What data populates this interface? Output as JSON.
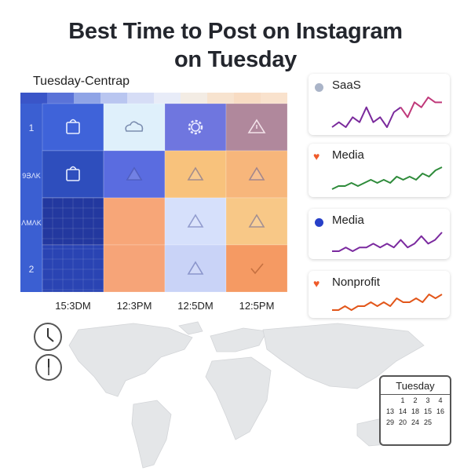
{
  "title": {
    "line1": "Best Time to Post on Instagram",
    "line2": "on Tuesday"
  },
  "chart_data": [
    {
      "type": "heatmap",
      "title": "Tuesday-Centrap",
      "x_labels": [
        "15:3DM",
        "12:3PM",
        "12:5DM",
        "12:5PM"
      ],
      "y_labels": [
        "1",
        "9ՅɅK",
        "ɅMɅK",
        "2"
      ],
      "cells": [
        [
          {
            "color": "#3f63d9",
            "icon": "bag-icon"
          },
          {
            "color": "#dff0fb",
            "icon": "cloud-icon"
          },
          {
            "color": "#6f76df",
            "icon": "gear-icon"
          },
          {
            "color": "#b0889c",
            "icon": "warning-icon"
          }
        ],
        [
          {
            "color": "#2e4ebd",
            "icon": "bag-icon"
          },
          {
            "color": "#5a6ce0",
            "icon": "triangle-icon"
          },
          {
            "color": "#f8c27c",
            "icon": "triangle-icon"
          },
          {
            "color": "#f7b67b",
            "icon": "triangle-icon"
          }
        ],
        [
          {
            "color": "#23389f",
            "icon": ""
          },
          {
            "color": "#f7a678",
            "icon": ""
          },
          {
            "color": "#d6e0fb",
            "icon": "triangle-icon"
          },
          {
            "color": "#f8c887",
            "icon": "triangle-icon"
          }
        ],
        [
          {
            "color": "#2a44b3",
            "icon": ""
          },
          {
            "color": "#f6a478",
            "icon": ""
          },
          {
            "color": "#c9d3f7",
            "icon": "triangle-icon"
          },
          {
            "color": "#f59a63",
            "icon": "check-icon"
          }
        ]
      ]
    },
    {
      "type": "line",
      "series": [
        {
          "name": "SaaS",
          "color": "#7a2a9c",
          "accent": "#c0397a",
          "values": [
            2,
            3,
            2,
            4,
            3,
            6,
            3,
            4,
            2,
            5,
            6,
            4,
            7,
            6,
            8,
            7,
            7
          ]
        },
        {
          "name": "Media",
          "color": "#2e8b3a",
          "values": [
            1,
            2,
            2,
            3,
            2,
            3,
            4,
            3,
            4,
            3,
            5,
            4,
            5,
            4,
            6,
            5,
            7,
            8
          ]
        },
        {
          "name": "Media",
          "color": "#7b2a9f",
          "values": [
            2,
            2,
            3,
            2,
            3,
            3,
            4,
            3,
            4,
            3,
            5,
            3,
            4,
            6,
            4,
            5,
            7
          ]
        },
        {
          "name": "Nonprofit",
          "color": "#e2561a",
          "values": [
            1,
            1,
            2,
            1,
            2,
            2,
            3,
            2,
            3,
            2,
            4,
            3,
            3,
            4,
            3,
            5,
            4,
            5
          ]
        }
      ]
    }
  ],
  "legend_markers": [
    {
      "shape": "dot",
      "color": "#aab4c8"
    },
    {
      "shape": "heart",
      "color": "#ef5a2a"
    },
    {
      "shape": "dot",
      "color": "#2740c8"
    },
    {
      "shape": "heart",
      "color": "#ef5a2a"
    }
  ],
  "calendar": {
    "title": "Tuesday",
    "rows": [
      [
        "",
        "1",
        "2",
        "3",
        "4"
      ],
      [
        "13",
        "14",
        "18",
        "15",
        "16"
      ],
      [
        "29",
        "20",
        "24",
        "25",
        ""
      ]
    ]
  }
}
